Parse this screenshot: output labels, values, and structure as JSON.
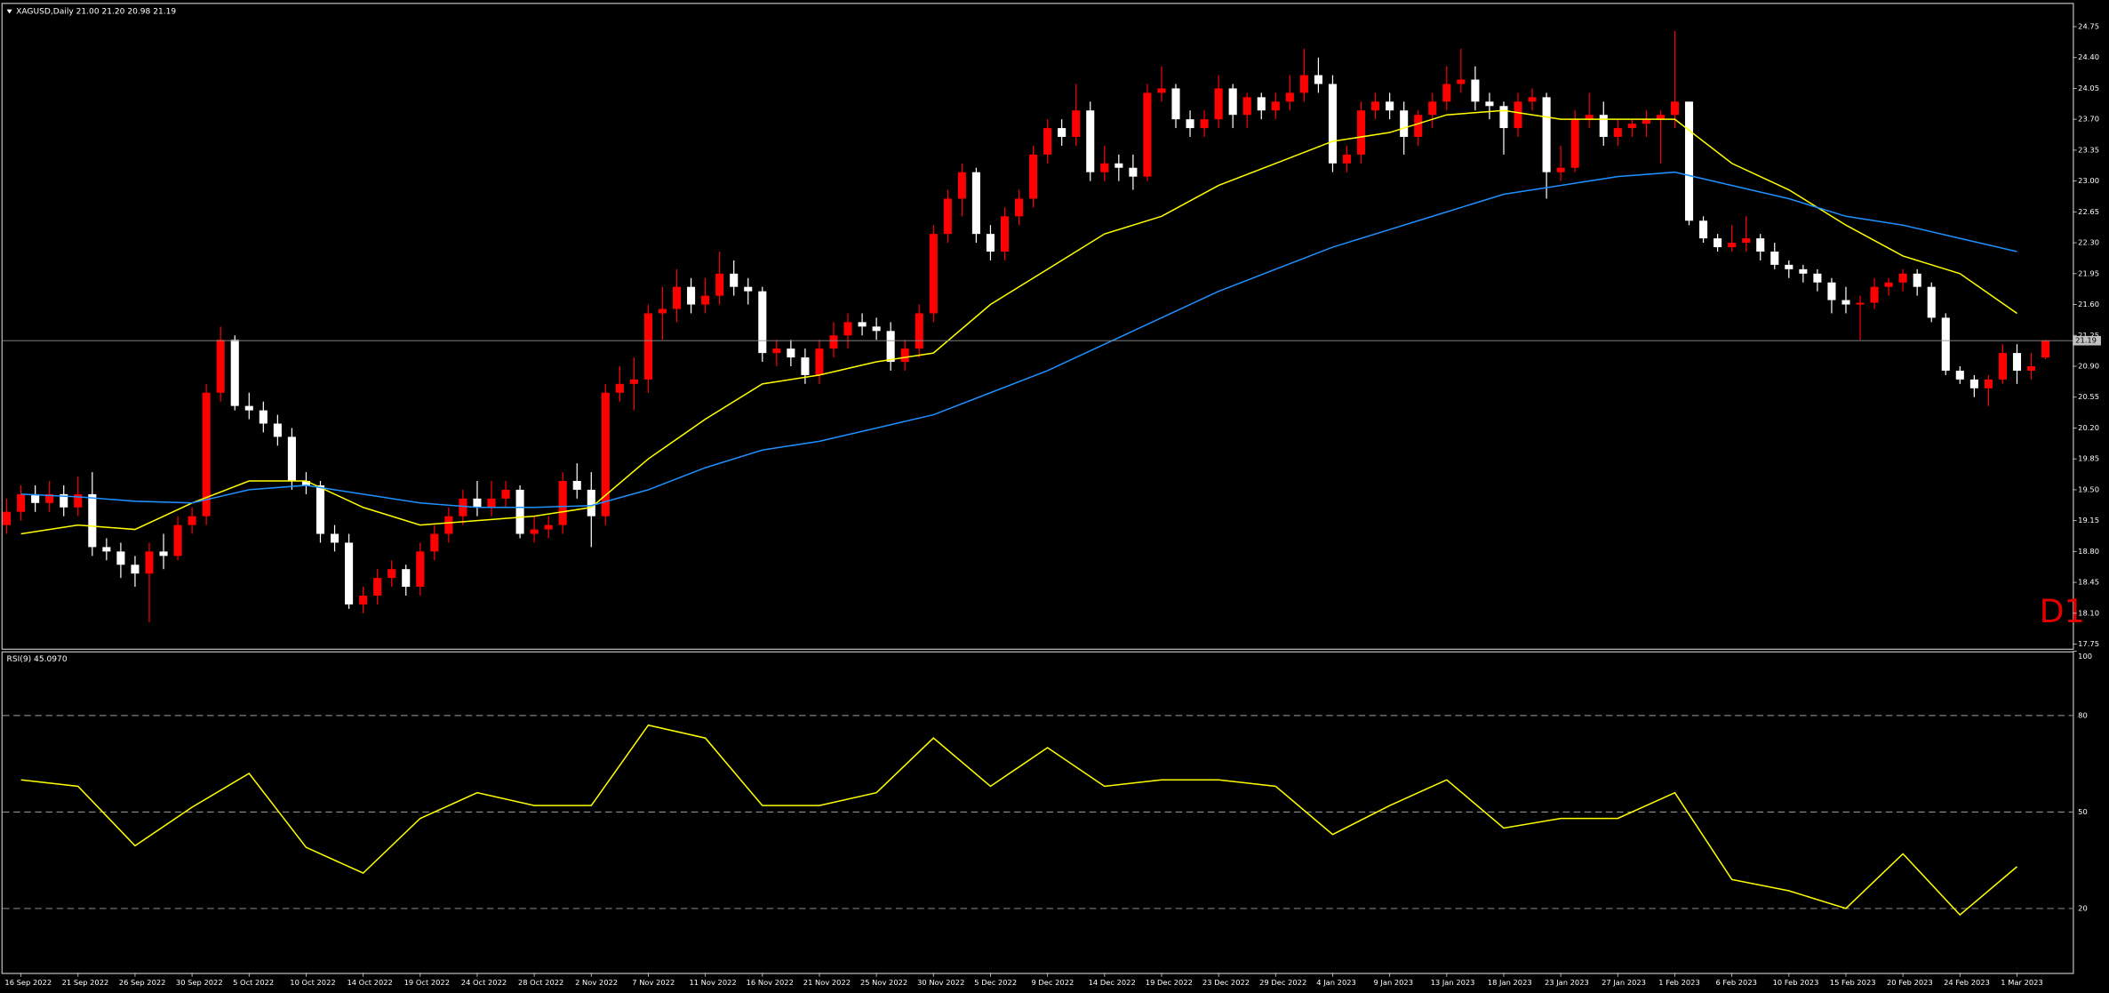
{
  "chart_data": {
    "type": "candlestick",
    "title": "XAGUSD,Daily  21.00 21.20 20.98 21.19",
    "annotation": "D1",
    "up_color": "#ff0000",
    "down_color": "#ffffff",
    "ylim": [
      17.7,
      24.96
    ],
    "yticks": [
      24.75,
      {
        "value": 24.4,
        "label": "24.40"
      },
      24.05,
      {
        "value": 23.7,
        "label": "23.70"
      },
      23.35,
      {
        "value": 23,
        "label": "23.00"
      },
      22.65,
      {
        "value": 22.3,
        "label": "22.30"
      },
      21.95,
      {
        "value": 21.6,
        "label": "21.60"
      },
      21.25,
      {
        "value": 20.9,
        "label": "20.90"
      },
      20.55,
      {
        "value": 20.2,
        "label": "20.20"
      },
      19.85,
      {
        "value": 19.5,
        "label": "19.50"
      },
      19.15,
      {
        "value": 18.8,
        "label": "18.80"
      },
      18.45,
      {
        "value": 18.1,
        "label": "18.10"
      },
      17.75
    ],
    "x_labels": [
      "16 Sep 2022",
      "21 Sep 2022",
      "26 Sep 2022",
      "30 Sep 2022",
      "5 Oct 2022",
      "10 Oct 2022",
      "14 Oct 2022",
      "19 Oct 2022",
      "24 Oct 2022",
      "28 Oct 2022",
      "2 Nov 2022",
      "7 Nov 2022",
      "11 Nov 2022",
      "16 Nov 2022",
      "21 Nov 2022",
      "25 Nov 2022",
      "30 Nov 2022",
      "5 Dec 2022",
      "9 Dec 2022",
      "14 Dec 2022",
      "19 Dec 2022",
      "23 Dec 2022",
      "29 Dec 2022",
      "4 Jan 2023",
      "9 Jan 2023",
      "13 Jan 2023",
      "18 Jan 2023",
      "23 Jan 2023",
      "27 Jan 2023",
      "1 Feb 2023",
      "6 Feb 2023",
      "10 Feb 2023",
      "15 Feb 2023",
      "20 Feb 2023",
      "24 Feb 2023",
      "1 Mar 2023"
    ],
    "candles": [
      [
        19.1,
        19.4,
        19.0,
        19.25
      ],
      [
        19.25,
        19.55,
        19.15,
        19.45
      ],
      [
        19.45,
        19.55,
        19.25,
        19.35
      ],
      [
        19.35,
        19.6,
        19.25,
        19.45
      ],
      [
        19.45,
        19.55,
        19.2,
        19.3
      ],
      [
        19.3,
        19.65,
        19.2,
        19.45
      ],
      [
        19.45,
        19.7,
        18.75,
        18.85
      ],
      [
        18.85,
        18.95,
        18.7,
        18.8
      ],
      [
        18.8,
        18.9,
        18.5,
        18.65
      ],
      [
        18.65,
        18.75,
        18.4,
        18.55
      ],
      [
        18.55,
        18.9,
        18.0,
        18.8
      ],
      [
        18.8,
        19.0,
        18.6,
        18.75
      ],
      [
        18.75,
        19.2,
        18.7,
        19.1
      ],
      [
        19.1,
        19.3,
        19.0,
        19.2
      ],
      [
        19.2,
        20.7,
        19.1,
        20.6
      ],
      [
        20.6,
        21.35,
        20.5,
        21.2
      ],
      [
        21.2,
        21.25,
        20.4,
        20.45
      ],
      [
        20.45,
        20.6,
        20.3,
        20.4
      ],
      [
        20.4,
        20.5,
        20.15,
        20.25
      ],
      [
        20.25,
        20.35,
        20.0,
        20.1
      ],
      [
        20.1,
        20.2,
        19.5,
        19.6
      ],
      [
        19.6,
        19.7,
        19.45,
        19.55
      ],
      [
        19.55,
        19.6,
        18.9,
        19.0
      ],
      [
        19.0,
        19.1,
        18.8,
        18.9
      ],
      [
        18.9,
        19.0,
        18.15,
        18.2
      ],
      [
        18.2,
        18.4,
        18.1,
        18.3
      ],
      [
        18.3,
        18.6,
        18.2,
        18.5
      ],
      [
        18.5,
        18.7,
        18.4,
        18.6
      ],
      [
        18.6,
        18.65,
        18.3,
        18.4
      ],
      [
        18.4,
        18.9,
        18.3,
        18.8
      ],
      [
        18.8,
        19.1,
        18.7,
        19.0
      ],
      [
        19.0,
        19.3,
        18.9,
        19.2
      ],
      [
        19.2,
        19.5,
        19.1,
        19.4
      ],
      [
        19.4,
        19.6,
        19.2,
        19.3
      ],
      [
        19.3,
        19.6,
        19.2,
        19.4
      ],
      [
        19.4,
        19.6,
        19.3,
        19.5
      ],
      [
        19.5,
        19.55,
        18.95,
        19.0
      ],
      [
        19.0,
        19.2,
        18.9,
        19.05
      ],
      [
        19.05,
        19.2,
        18.95,
        19.1
      ],
      [
        19.1,
        19.7,
        19.0,
        19.6
      ],
      [
        19.6,
        19.8,
        19.4,
        19.5
      ],
      [
        19.5,
        19.7,
        18.85,
        19.2
      ],
      [
        19.2,
        20.7,
        19.1,
        20.6
      ],
      [
        20.6,
        20.9,
        20.5,
        20.7
      ],
      [
        20.7,
        21.0,
        20.4,
        20.75
      ],
      [
        20.75,
        21.6,
        20.6,
        21.5
      ],
      [
        21.5,
        21.8,
        21.2,
        21.55
      ],
      [
        21.55,
        22.0,
        21.4,
        21.8
      ],
      [
        21.8,
        21.9,
        21.5,
        21.6
      ],
      [
        21.6,
        21.9,
        21.5,
        21.7
      ],
      [
        21.7,
        22.2,
        21.6,
        21.95
      ],
      [
        21.95,
        22.1,
        21.7,
        21.8
      ],
      [
        21.8,
        21.9,
        21.6,
        21.75
      ],
      [
        21.75,
        21.8,
        20.95,
        21.05
      ],
      [
        21.05,
        21.2,
        20.9,
        21.1
      ],
      [
        21.1,
        21.2,
        20.9,
        21.0
      ],
      [
        21.0,
        21.1,
        20.7,
        20.8
      ],
      [
        20.8,
        21.2,
        20.7,
        21.1
      ],
      [
        21.1,
        21.4,
        21.0,
        21.25
      ],
      [
        21.25,
        21.5,
        21.1,
        21.4
      ],
      [
        21.4,
        21.5,
        21.25,
        21.35
      ],
      [
        21.35,
        21.45,
        21.2,
        21.3
      ],
      [
        21.3,
        21.4,
        20.85,
        20.95
      ],
      [
        20.95,
        21.2,
        20.85,
        21.1
      ],
      [
        21.1,
        21.6,
        21.0,
        21.5
      ],
      [
        21.5,
        22.5,
        21.4,
        22.4
      ],
      [
        22.4,
        22.9,
        22.3,
        22.8
      ],
      [
        22.8,
        23.2,
        22.6,
        23.1
      ],
      [
        23.1,
        23.15,
        22.3,
        22.4
      ],
      [
        22.4,
        22.5,
        22.1,
        22.2
      ],
      [
        22.2,
        22.7,
        22.1,
        22.6
      ],
      [
        22.6,
        22.9,
        22.5,
        22.8
      ],
      [
        22.8,
        23.4,
        22.7,
        23.3
      ],
      [
        23.3,
        23.7,
        23.2,
        23.6
      ],
      [
        23.6,
        23.7,
        23.4,
        23.5
      ],
      [
        23.5,
        24.1,
        23.4,
        23.8
      ],
      [
        23.8,
        23.9,
        23.0,
        23.1
      ],
      [
        23.1,
        23.4,
        23.0,
        23.2
      ],
      [
        23.2,
        23.3,
        23.0,
        23.15
      ],
      [
        23.15,
        23.3,
        22.9,
        23.05
      ],
      [
        23.05,
        24.1,
        23.0,
        24.0
      ],
      [
        24.0,
        24.3,
        23.9,
        24.05
      ],
      [
        24.05,
        24.1,
        23.6,
        23.7
      ],
      [
        23.7,
        23.8,
        23.5,
        23.6
      ],
      [
        23.6,
        23.8,
        23.5,
        23.7
      ],
      [
        23.7,
        24.2,
        23.6,
        24.05
      ],
      [
        24.05,
        24.1,
        23.6,
        23.75
      ],
      [
        23.75,
        24.0,
        23.6,
        23.95
      ],
      [
        23.95,
        24.0,
        23.7,
        23.8
      ],
      [
        23.8,
        24.0,
        23.7,
        23.9
      ],
      [
        23.9,
        24.2,
        23.8,
        24.0
      ],
      [
        24.0,
        24.5,
        23.9,
        24.2
      ],
      [
        24.2,
        24.4,
        24.0,
        24.1
      ],
      [
        24.1,
        24.2,
        23.1,
        23.2
      ],
      [
        23.2,
        23.4,
        23.1,
        23.3
      ],
      [
        23.3,
        23.9,
        23.2,
        23.8
      ],
      [
        23.8,
        24.0,
        23.7,
        23.9
      ],
      [
        23.9,
        24.0,
        23.7,
        23.8
      ],
      [
        23.8,
        23.9,
        23.3,
        23.5
      ],
      [
        23.5,
        23.8,
        23.4,
        23.75
      ],
      [
        23.75,
        24.0,
        23.6,
        23.9
      ],
      [
        23.9,
        24.3,
        23.8,
        24.1
      ],
      [
        24.1,
        24.5,
        24.0,
        24.15
      ],
      [
        24.15,
        24.3,
        23.8,
        23.9
      ],
      [
        23.9,
        24.0,
        23.7,
        23.85
      ],
      [
        23.85,
        23.9,
        23.3,
        23.6
      ],
      [
        23.6,
        24.0,
        23.5,
        23.9
      ],
      [
        23.9,
        24.05,
        23.8,
        23.95
      ],
      [
        23.95,
        24.0,
        22.8,
        23.1
      ],
      [
        23.1,
        23.4,
        23.0,
        23.15
      ],
      [
        23.15,
        23.8,
        23.1,
        23.7
      ],
      [
        23.7,
        24.0,
        23.6,
        23.75
      ],
      [
        23.75,
        23.9,
        23.4,
        23.5
      ],
      [
        23.5,
        23.7,
        23.4,
        23.6
      ],
      [
        23.6,
        23.7,
        23.5,
        23.65
      ],
      [
        23.65,
        23.8,
        23.5,
        23.7
      ],
      [
        23.7,
        23.8,
        23.2,
        23.75
      ],
      [
        23.75,
        24.7,
        23.6,
        23.9
      ],
      [
        23.9,
        23.9,
        22.5,
        22.55
      ],
      [
        22.55,
        22.6,
        22.3,
        22.35
      ],
      [
        22.35,
        22.4,
        22.2,
        22.25
      ],
      [
        22.25,
        22.5,
        22.2,
        22.3
      ],
      [
        22.3,
        22.6,
        22.2,
        22.35
      ],
      [
        22.35,
        22.4,
        22.1,
        22.2
      ],
      [
        22.2,
        22.3,
        22.0,
        22.05
      ],
      [
        22.05,
        22.1,
        21.9,
        22.0
      ],
      [
        22.0,
        22.05,
        21.85,
        21.95
      ],
      [
        21.95,
        22.0,
        21.75,
        21.85
      ],
      [
        21.85,
        21.9,
        21.5,
        21.65
      ],
      [
        21.65,
        21.8,
        21.5,
        21.6
      ],
      [
        21.6,
        21.7,
        21.2,
        21.62
      ],
      [
        21.62,
        21.9,
        21.55,
        21.8
      ],
      [
        21.8,
        21.9,
        21.7,
        21.85
      ],
      [
        21.85,
        22.0,
        21.75,
        21.95
      ],
      [
        21.95,
        22.0,
        21.7,
        21.8
      ],
      [
        21.8,
        21.85,
        21.4,
        21.45
      ],
      [
        21.45,
        21.5,
        20.8,
        20.85
      ],
      [
        20.85,
        20.9,
        20.7,
        20.75
      ],
      [
        20.75,
        20.8,
        20.55,
        20.65
      ],
      [
        20.65,
        20.8,
        20.45,
        20.75
      ],
      [
        20.75,
        21.15,
        20.7,
        21.05
      ],
      [
        21.05,
        21.15,
        20.7,
        20.85
      ],
      [
        20.85,
        21.05,
        20.75,
        20.9
      ],
      [
        21.0,
        21.2,
        20.98,
        21.19
      ]
    ],
    "overlays": [
      {
        "color": "#ffff00",
        "values": [
          19.0,
          19.1,
          19.05,
          19.35,
          19.6,
          19.6,
          19.3,
          19.1,
          19.15,
          19.2,
          19.3,
          19.85,
          20.3,
          20.7,
          20.8,
          20.95,
          21.05,
          21.6,
          22.0,
          22.4,
          22.6,
          22.95,
          23.2,
          23.45,
          23.55,
          23.75,
          23.8,
          23.7,
          23.7,
          23.7,
          23.2,
          22.9,
          22.5,
          22.15,
          21.95,
          21.5
        ]
      },
      {
        "color": "#1e90ff",
        "values": [
          19.45,
          19.42,
          19.37,
          19.35,
          19.5,
          19.55,
          19.45,
          19.35,
          19.3,
          19.3,
          19.32,
          19.5,
          19.75,
          19.95,
          20.05,
          20.2,
          20.35,
          20.6,
          20.85,
          21.15,
          21.45,
          21.75,
          22.0,
          22.25,
          22.45,
          22.65,
          22.85,
          22.95,
          23.05,
          23.1,
          22.95,
          22.8,
          22.6,
          22.5,
          22.35,
          22.2
        ]
      }
    ],
    "rsi": {
      "type": "line",
      "title": "RSI(9) 45.0970",
      "color": "#ffff00",
      "ylim": [
        0,
        100
      ],
      "yticks": [
        100,
        80,
        50,
        20
      ],
      "values": [
        60,
        58,
        39.5,
        51.5,
        62,
        39,
        31,
        48,
        56,
        52,
        52,
        77,
        73,
        52,
        52,
        56,
        73,
        58,
        70,
        58,
        60,
        60,
        58,
        43,
        52,
        60,
        45,
        48,
        48,
        56,
        29,
        25.5,
        20,
        37,
        18,
        33
      ]
    }
  }
}
